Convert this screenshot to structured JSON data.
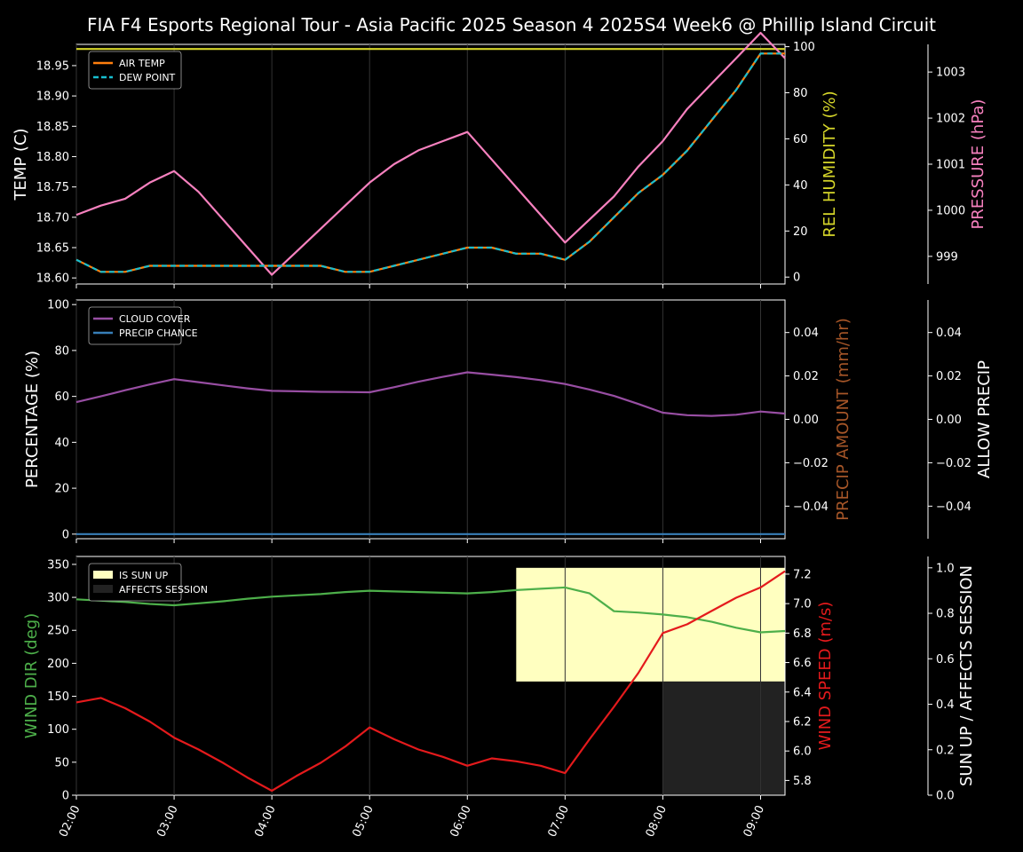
{
  "title": "FIA F4 Esports Regional Tour - Asia Pacific 2025 Season 4 2025S4 Week6 @ Phillip Island Circuit",
  "colors": {
    "air_temp": "#ff7f0e",
    "dew_point": "#17becf",
    "humidity": "#d6d62a",
    "pressure": "#f781bf",
    "cloud": "#984ea3",
    "precip_chance": "#377eb8",
    "precip_amount": "#a65628",
    "wind_dir": "#4daf4a",
    "wind_speed": "#e41a1c",
    "sun_up": "#ffffc0",
    "affects_session": "#222222"
  },
  "chart_data": [
    {
      "type": "line",
      "x_ticks": [
        "02:00",
        "03:00",
        "04:00",
        "05:00",
        "06:00",
        "07:00",
        "08:00",
        "09:00"
      ],
      "x_hours": [
        2,
        2.25,
        2.5,
        2.75,
        3,
        3.25,
        3.5,
        3.75,
        4,
        4.25,
        4.5,
        4.75,
        5,
        5.25,
        5.5,
        5.75,
        6,
        6.25,
        6.5,
        6.75,
        7,
        7.25,
        7.5,
        7.75,
        8,
        8.25,
        8.5,
        8.75,
        9,
        9.25
      ],
      "xlim": [
        2,
        9.25
      ],
      "ylabel": "TEMP (C)",
      "ylabel2": "REL HUMIDITY (%)",
      "ylabel3": "PRESSURE (hPa)",
      "ylim": [
        18.59,
        18.985
      ],
      "y_ticks": [
        "18.60",
        "18.65",
        "18.70",
        "18.75",
        "18.80",
        "18.85",
        "18.90",
        "18.95"
      ],
      "ylim2": [
        -3,
        101
      ],
      "y2_ticks": [
        "0",
        "20",
        "40",
        "60",
        "80",
        "100"
      ],
      "ylim3": [
        998.4,
        1003.6
      ],
      "y3_ticks": [
        "999",
        "1000",
        "1001",
        "1002",
        "1003"
      ],
      "legend": [
        "AIR TEMP",
        "DEW POINT"
      ],
      "legend_position": "top-left",
      "series": [
        {
          "name": "AIR TEMP",
          "axis": "left",
          "values": [
            18.63,
            18.61,
            18.61,
            18.62,
            18.62,
            18.62,
            18.62,
            18.62,
            18.62,
            18.62,
            18.62,
            18.61,
            18.61,
            18.62,
            18.63,
            18.64,
            18.65,
            18.65,
            18.64,
            18.64,
            18.63,
            18.66,
            18.7,
            18.74,
            18.77,
            18.81,
            18.86,
            18.91,
            18.97,
            18.97
          ]
        },
        {
          "name": "DEW POINT",
          "axis": "left",
          "values": [
            18.63,
            18.61,
            18.61,
            18.62,
            18.62,
            18.62,
            18.62,
            18.62,
            18.62,
            18.62,
            18.62,
            18.61,
            18.61,
            18.62,
            18.63,
            18.64,
            18.65,
            18.65,
            18.64,
            18.64,
            18.63,
            18.66,
            18.7,
            18.74,
            18.77,
            18.81,
            18.86,
            18.91,
            18.97,
            18.97
          ]
        },
        {
          "name": "REL HUMIDITY",
          "axis": "right",
          "values": [
            99,
            99,
            99,
            99,
            99,
            99,
            99,
            99,
            99,
            99,
            99,
            99,
            99,
            99,
            99,
            99,
            99,
            99,
            99,
            99,
            99,
            99,
            99,
            99,
            99,
            99,
            99,
            99,
            99,
            99
          ]
        },
        {
          "name": "PRESSURE",
          "axis": "far-right",
          "values": [
            999.9,
            1000.1,
            1000.25,
            1000.6,
            1000.85,
            1000.4,
            999.8,
            999.2,
            998.6,
            999.1,
            999.6,
            1000.1,
            1000.6,
            1001.0,
            1001.3,
            1001.5,
            1001.7,
            1001.1,
            1000.5,
            999.9,
            999.3,
            999.8,
            1000.3,
            1000.95,
            1001.5,
            1002.2,
            1002.75,
            1003.3,
            1003.85,
            1003.3
          ]
        }
      ]
    },
    {
      "type": "line",
      "ylabel": "PERCENTAGE (%)",
      "ylabel2": "PRECIP AMOUNT (mm/hr)",
      "ylabel3": "ALLOW PRECIP",
      "ylim": [
        -2,
        102
      ],
      "y_ticks": [
        "0",
        "20",
        "40",
        "60",
        "80",
        "100"
      ],
      "ylim2": [
        -0.055,
        0.055
      ],
      "y2_ticks": [
        "−0.04",
        "−0.02",
        "0.00",
        "0.02",
        "0.04"
      ],
      "ylim3": [
        -0.055,
        0.055
      ],
      "y3_ticks": [
        "−0.04",
        "−0.02",
        "0.00",
        "0.02",
        "0.04"
      ],
      "legend": [
        "CLOUD COVER",
        "PRECIP CHANCE"
      ],
      "legend_position": "top-left",
      "series": [
        {
          "name": "CLOUD COVER",
          "axis": "left",
          "values": [
            57.5,
            60,
            62.7,
            65.2,
            67.5,
            66.2,
            64.8,
            63.5,
            62.4,
            62.2,
            62.0,
            61.9,
            61.8,
            64,
            66.4,
            68.5,
            70.5,
            69.5,
            68.4,
            67.1,
            65.4,
            63,
            60.2,
            56.7,
            52.9,
            51.8,
            51.5,
            52,
            53.4,
            52.5
          ]
        },
        {
          "name": "PRECIP CHANCE",
          "axis": "left",
          "values": [
            0,
            0,
            0,
            0,
            0,
            0,
            0,
            0,
            0,
            0,
            0,
            0,
            0,
            0,
            0,
            0,
            0,
            0,
            0,
            0,
            0,
            0,
            0,
            0,
            0,
            0,
            0,
            0,
            0,
            0
          ]
        }
      ]
    },
    {
      "type": "line",
      "ylabel": "WIND DIR (deg)",
      "ylabel2": "WIND SPEED (m/s)",
      "ylabel3": "SUN UP / AFFECTS SESSION",
      "ylim": [
        0,
        362
      ],
      "y_ticks": [
        "0",
        "50",
        "100",
        "150",
        "200",
        "250",
        "300",
        "350"
      ],
      "ylim2": [
        5.7,
        7.32
      ],
      "y2_ticks": [
        "5.8",
        "6.0",
        "6.2",
        "6.4",
        "6.6",
        "6.8",
        "7.0",
        "7.2"
      ],
      "ylim3": [
        0,
        1.05
      ],
      "y3_ticks": [
        "0.0",
        "0.2",
        "0.4",
        "0.6",
        "0.8",
        "1.0"
      ],
      "legend": [
        "IS SUN UP",
        "AFFECTS SESSION"
      ],
      "legend_position": "top-left",
      "sun_up_start": 6.5,
      "sun_up_level": 1.0,
      "sun_up_base": 0.5,
      "affects_session_start": 8.0,
      "affects_session_level": 0.5,
      "series": [
        {
          "name": "WIND DIR",
          "axis": "left",
          "values": [
            297,
            295,
            293,
            290,
            288,
            291,
            294,
            298,
            301,
            303,
            305,
            308,
            310,
            309,
            308,
            307,
            306,
            308,
            311,
            313,
            315,
            306,
            279,
            277,
            274,
            270,
            263,
            254,
            247,
            249
          ]
        },
        {
          "name": "WIND SPEED",
          "axis": "right",
          "values": [
            6.33,
            6.36,
            6.29,
            6.2,
            6.09,
            6.01,
            5.92,
            5.82,
            5.73,
            5.83,
            5.92,
            6.03,
            6.16,
            6.08,
            6.01,
            5.96,
            5.9,
            5.95,
            5.93,
            5.9,
            5.85,
            6.08,
            6.3,
            6.53,
            6.8,
            6.86,
            6.95,
            7.04,
            7.11,
            7.22
          ]
        }
      ]
    }
  ]
}
